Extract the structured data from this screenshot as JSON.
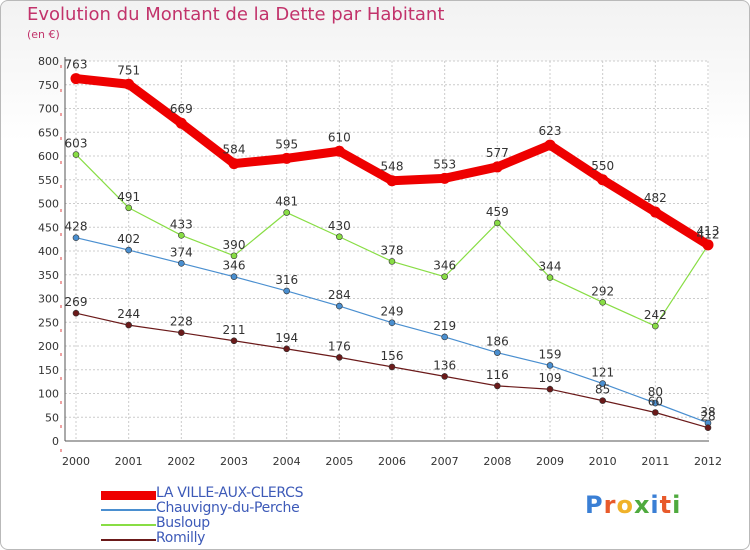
{
  "title": "Evolution du Montant de la Dette par Habitant",
  "subtitle": "(en €)",
  "logo": {
    "text": "Proxiti",
    "colors": [
      "#3a7fd5",
      "#e85a2b",
      "#f0b22a",
      "#4faa3e",
      "#3a7fd5",
      "#e85a2b",
      "#4faa3e"
    ]
  },
  "colors": {
    "title": "#c2336b",
    "axis": "#555555",
    "grid": "#cccccc",
    "legend_text": "#3d5ab8"
  },
  "chart_data": {
    "type": "line",
    "x": [
      2000,
      2001,
      2002,
      2003,
      2004,
      2005,
      2006,
      2007,
      2008,
      2009,
      2010,
      2011,
      2012
    ],
    "ylim": [
      0,
      800
    ],
    "yticks": [
      0,
      50,
      100,
      150,
      200,
      250,
      300,
      350,
      400,
      450,
      500,
      550,
      600,
      650,
      700,
      750,
      800
    ],
    "grid": true,
    "legend_position": "bottom-left",
    "series": [
      {
        "name": "LA VILLE-AUX-CLERCS",
        "color": "#ee0000",
        "emphasis": true,
        "values": [
          763,
          751,
          669,
          584,
          595,
          610,
          548,
          553,
          577,
          623,
          550,
          482,
          413
        ]
      },
      {
        "name": "Chauvigny-du-Perche",
        "color": "#4a8fd0",
        "values": [
          428,
          402,
          374,
          346,
          316,
          284,
          249,
          219,
          186,
          159,
          121,
          80,
          38
        ]
      },
      {
        "name": "Busloup",
        "color": "#88dd44",
        "values": [
          603,
          491,
          433,
          390,
          481,
          430,
          378,
          346,
          459,
          344,
          292,
          242,
          412
        ]
      },
      {
        "name": "Romilly",
        "color": "#6b1a1a",
        "values": [
          269,
          244,
          228,
          211,
          194,
          176,
          156,
          136,
          116,
          109,
          85,
          60,
          28
        ]
      }
    ]
  }
}
